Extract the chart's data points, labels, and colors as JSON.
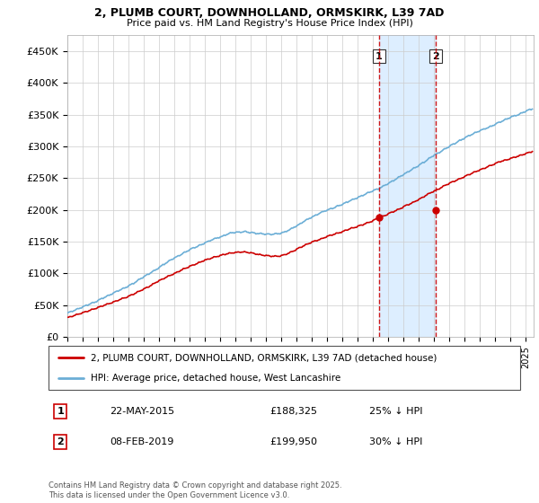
{
  "title_line1": "2, PLUMB COURT, DOWNHOLLAND, ORMSKIRK, L39 7AD",
  "title_line2": "Price paid vs. HM Land Registry's House Price Index (HPI)",
  "ylabel_ticks": [
    "£0",
    "£50K",
    "£100K",
    "£150K",
    "£200K",
    "£250K",
    "£300K",
    "£350K",
    "£400K",
    "£450K"
  ],
  "ytick_values": [
    0,
    50000,
    100000,
    150000,
    200000,
    250000,
    300000,
    350000,
    400000,
    450000
  ],
  "ylim": [
    0,
    475000
  ],
  "xlim_start": 1995.0,
  "xlim_end": 2025.5,
  "transaction1_date": 2015.39,
  "transaction1_price": 188325,
  "transaction1_label": "22-MAY-2015",
  "transaction1_amount": "£188,325",
  "transaction1_pct": "25% ↓ HPI",
  "transaction2_date": 2019.1,
  "transaction2_price": 199950,
  "transaction2_label": "08-FEB-2019",
  "transaction2_amount": "£199,950",
  "transaction2_pct": "30% ↓ HPI",
  "shaded_region_start": 2015.39,
  "shaded_region_end": 2019.1,
  "hpi_color": "#6baed6",
  "price_color": "#cc0000",
  "shade_color": "#ddeeff",
  "dashed_color": "#cc0000",
  "legend_label_price": "2, PLUMB COURT, DOWNHOLLAND, ORMSKIRK, L39 7AD (detached house)",
  "legend_label_hpi": "HPI: Average price, detached house, West Lancashire",
  "footer": "Contains HM Land Registry data © Crown copyright and database right 2025.\nThis data is licensed under the Open Government Licence v3.0.",
  "background_color": "#ffffff",
  "grid_color": "#cccccc"
}
